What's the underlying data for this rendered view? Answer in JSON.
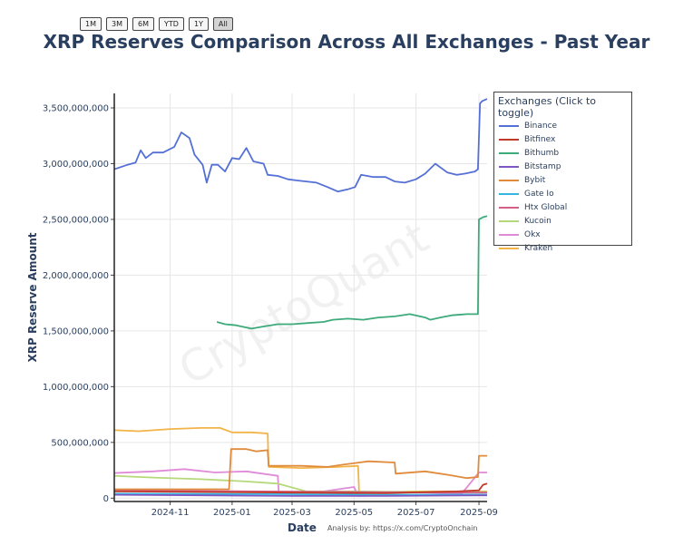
{
  "range_buttons": [
    {
      "label": "1M",
      "active": false
    },
    {
      "label": "3M",
      "active": false
    },
    {
      "label": "6M",
      "active": false
    },
    {
      "label": "YTD",
      "active": false
    },
    {
      "label": "1Y",
      "active": false
    },
    {
      "label": "All",
      "active": true
    }
  ],
  "watermark": "CryptoQuant",
  "source_note": "Analysis by: https://x.com/CryptoOnchain",
  "chart_data": {
    "type": "line",
    "title": "XRP Reserves Comparison Across All Exchanges - Past Year",
    "xlabel": "Date",
    "ylabel": "XRP Reserve Amount",
    "x_start": "2024-09-07",
    "x_end": "2025-09-09",
    "xlim": [
      "2024-09-07",
      "2025-09-09"
    ],
    "ylim": [
      -30000000,
      3630000000
    ],
    "x_ticks": [
      "2024-11",
      "2025-01",
      "2025-03",
      "2025-05",
      "2025-07",
      "2025-09"
    ],
    "y_ticks": [
      {
        "value": 0,
        "label": "0"
      },
      {
        "value": 500000000,
        "label": "500,000,000"
      },
      {
        "value": 1000000000,
        "label": "1,000,000,000"
      },
      {
        "value": 1500000000,
        "label": "1,500,000,000"
      },
      {
        "value": 2000000000,
        "label": "2,000,000,000"
      },
      {
        "value": 2500000000,
        "label": "2,500,000,000"
      },
      {
        "value": 3000000000,
        "label": "3,000,000,000"
      },
      {
        "value": 3500000000,
        "label": "3,500,000,000"
      }
    ],
    "grid": true,
    "legend_title": "Exchanges (Click to toggle)",
    "legend_position": "top-right",
    "series": [
      {
        "name": "Binance",
        "color": "#5470d6",
        "points": [
          [
            "2024-09-07",
            2950000000
          ],
          [
            "2024-09-20",
            2990000000
          ],
          [
            "2024-09-28",
            3010000000
          ],
          [
            "2024-10-03",
            3120000000
          ],
          [
            "2024-10-08",
            3050000000
          ],
          [
            "2024-10-15",
            3100000000
          ],
          [
            "2024-10-25",
            3100000000
          ],
          [
            "2024-11-05",
            3150000000
          ],
          [
            "2024-11-12",
            3280000000
          ],
          [
            "2024-11-20",
            3230000000
          ],
          [
            "2024-11-25",
            3080000000
          ],
          [
            "2024-12-03",
            2990000000
          ],
          [
            "2024-12-07",
            2830000000
          ],
          [
            "2024-12-12",
            2990000000
          ],
          [
            "2024-12-18",
            2990000000
          ],
          [
            "2024-12-25",
            2930000000
          ],
          [
            "2025-01-01",
            3050000000
          ],
          [
            "2025-01-08",
            3040000000
          ],
          [
            "2025-01-15",
            3140000000
          ],
          [
            "2025-01-22",
            3020000000
          ],
          [
            "2025-02-01",
            3000000000
          ],
          [
            "2025-02-05",
            2900000000
          ],
          [
            "2025-02-15",
            2890000000
          ],
          [
            "2025-02-25",
            2860000000
          ],
          [
            "2025-03-05",
            2850000000
          ],
          [
            "2025-03-15",
            2840000000
          ],
          [
            "2025-03-25",
            2830000000
          ],
          [
            "2025-04-05",
            2790000000
          ],
          [
            "2025-04-15",
            2750000000
          ],
          [
            "2025-04-25",
            2770000000
          ],
          [
            "2025-05-02",
            2790000000
          ],
          [
            "2025-05-08",
            2900000000
          ],
          [
            "2025-05-20",
            2880000000
          ],
          [
            "2025-06-01",
            2880000000
          ],
          [
            "2025-06-10",
            2840000000
          ],
          [
            "2025-06-20",
            2830000000
          ],
          [
            "2025-07-01",
            2860000000
          ],
          [
            "2025-07-10",
            2910000000
          ],
          [
            "2025-07-20",
            3000000000
          ],
          [
            "2025-08-01",
            2920000000
          ],
          [
            "2025-08-10",
            2900000000
          ],
          [
            "2025-08-18",
            2910000000
          ],
          [
            "2025-08-28",
            2930000000
          ],
          [
            "2025-08-31",
            2950000000
          ],
          [
            "2025-09-02",
            3540000000
          ],
          [
            "2025-09-04",
            3560000000
          ],
          [
            "2025-09-09",
            3580000000
          ]
        ]
      },
      {
        "name": "Bitfinex",
        "color": "#c0392b",
        "points": [
          [
            "2024-09-07",
            60000000
          ],
          [
            "2024-12-01",
            55000000
          ],
          [
            "2025-03-01",
            50000000
          ],
          [
            "2025-06-01",
            45000000
          ],
          [
            "2025-08-10",
            60000000
          ],
          [
            "2025-09-01",
            70000000
          ],
          [
            "2025-09-05",
            120000000
          ],
          [
            "2025-09-09",
            130000000
          ]
        ]
      },
      {
        "name": "Bithumb",
        "color": "#3daa7b",
        "points": [
          [
            "2024-12-17",
            1580000000
          ],
          [
            "2024-12-25",
            1560000000
          ],
          [
            "2025-01-05",
            1550000000
          ],
          [
            "2025-01-20",
            1520000000
          ],
          [
            "2025-02-01",
            1540000000
          ],
          [
            "2025-02-15",
            1560000000
          ],
          [
            "2025-03-01",
            1560000000
          ],
          [
            "2025-03-15",
            1570000000
          ],
          [
            "2025-04-01",
            1580000000
          ],
          [
            "2025-04-10",
            1600000000
          ],
          [
            "2025-04-25",
            1610000000
          ],
          [
            "2025-05-10",
            1600000000
          ],
          [
            "2025-05-25",
            1620000000
          ],
          [
            "2025-06-10",
            1630000000
          ],
          [
            "2025-06-25",
            1650000000
          ],
          [
            "2025-07-10",
            1620000000
          ],
          [
            "2025-07-15",
            1600000000
          ],
          [
            "2025-07-25",
            1620000000
          ],
          [
            "2025-08-05",
            1640000000
          ],
          [
            "2025-08-20",
            1650000000
          ],
          [
            "2025-08-31",
            1650000000
          ],
          [
            "2025-09-01",
            2500000000
          ],
          [
            "2025-09-05",
            2520000000
          ],
          [
            "2025-09-09",
            2530000000
          ]
        ]
      },
      {
        "name": "Bitstamp",
        "color": "#7e57c2",
        "points": [
          [
            "2024-09-07",
            30000000
          ],
          [
            "2024-12-01",
            25000000
          ],
          [
            "2025-03-01",
            20000000
          ],
          [
            "2025-06-01",
            20000000
          ],
          [
            "2025-09-09",
            25000000
          ]
        ]
      },
      {
        "name": "Bybit",
        "color": "#e08a3c",
        "points": [
          [
            "2024-09-07",
            80000000
          ],
          [
            "2024-12-29",
            80000000
          ],
          [
            "2024-12-31",
            440000000
          ],
          [
            "2025-01-15",
            440000000
          ],
          [
            "2025-01-25",
            420000000
          ],
          [
            "2025-02-05",
            430000000
          ],
          [
            "2025-02-06",
            290000000
          ],
          [
            "2025-03-10",
            290000000
          ],
          [
            "2025-04-05",
            280000000
          ],
          [
            "2025-04-20",
            300000000
          ],
          [
            "2025-05-15",
            330000000
          ],
          [
            "2025-06-10",
            320000000
          ],
          [
            "2025-06-11",
            220000000
          ],
          [
            "2025-07-10",
            240000000
          ],
          [
            "2025-08-01",
            210000000
          ],
          [
            "2025-08-20",
            180000000
          ],
          [
            "2025-08-31",
            190000000
          ],
          [
            "2025-09-01",
            380000000
          ],
          [
            "2025-09-09",
            380000000
          ]
        ]
      },
      {
        "name": "Gate Io",
        "color": "#34b6e0",
        "points": [
          [
            "2024-09-07",
            40000000
          ],
          [
            "2024-12-01",
            38000000
          ],
          [
            "2025-03-01",
            35000000
          ],
          [
            "2025-06-01",
            30000000
          ],
          [
            "2025-09-09",
            32000000
          ]
        ]
      },
      {
        "name": "Htx Global",
        "color": "#d45f86",
        "points": [
          [
            "2024-09-07",
            70000000
          ],
          [
            "2024-11-15",
            65000000
          ],
          [
            "2025-02-01",
            60000000
          ],
          [
            "2025-05-01",
            55000000
          ],
          [
            "2025-08-01",
            50000000
          ],
          [
            "2025-09-09",
            50000000
          ]
        ]
      },
      {
        "name": "Kucoin",
        "color": "#b5d97a",
        "points": [
          [
            "2024-09-07",
            200000000
          ],
          [
            "2024-10-15",
            185000000
          ],
          [
            "2024-12-01",
            170000000
          ],
          [
            "2025-01-15",
            150000000
          ],
          [
            "2025-02-15",
            130000000
          ],
          [
            "2025-03-15",
            60000000
          ],
          [
            "2025-05-01",
            60000000
          ],
          [
            "2025-07-01",
            55000000
          ],
          [
            "2025-09-09",
            55000000
          ]
        ]
      },
      {
        "name": "Okx",
        "color": "#e08bd8",
        "points": [
          [
            "2024-09-07",
            225000000
          ],
          [
            "2024-10-15",
            240000000
          ],
          [
            "2024-11-15",
            260000000
          ],
          [
            "2024-12-15",
            230000000
          ],
          [
            "2025-01-15",
            240000000
          ],
          [
            "2025-02-15",
            200000000
          ],
          [
            "2025-02-16",
            40000000
          ],
          [
            "2025-04-01",
            60000000
          ],
          [
            "2025-05-01",
            100000000
          ],
          [
            "2025-05-05",
            20000000
          ],
          [
            "2025-07-01",
            30000000
          ],
          [
            "2025-08-15",
            40000000
          ],
          [
            "2025-09-01",
            230000000
          ],
          [
            "2025-09-09",
            230000000
          ]
        ]
      },
      {
        "name": "Kraken",
        "color": "#f2b347",
        "points": [
          [
            "2024-09-07",
            610000000
          ],
          [
            "2024-10-01",
            600000000
          ],
          [
            "2024-11-01",
            620000000
          ],
          [
            "2024-12-01",
            630000000
          ],
          [
            "2024-12-20",
            630000000
          ],
          [
            "2025-01-01",
            590000000
          ],
          [
            "2025-01-20",
            590000000
          ],
          [
            "2025-02-05",
            580000000
          ],
          [
            "2025-02-06",
            280000000
          ],
          [
            "2025-03-10",
            270000000
          ],
          [
            "2025-04-15",
            280000000
          ],
          [
            "2025-05-05",
            290000000
          ],
          [
            "2025-05-06",
            50000000
          ],
          [
            "2025-07-01",
            60000000
          ],
          [
            "2025-09-09",
            60000000
          ]
        ]
      }
    ]
  }
}
